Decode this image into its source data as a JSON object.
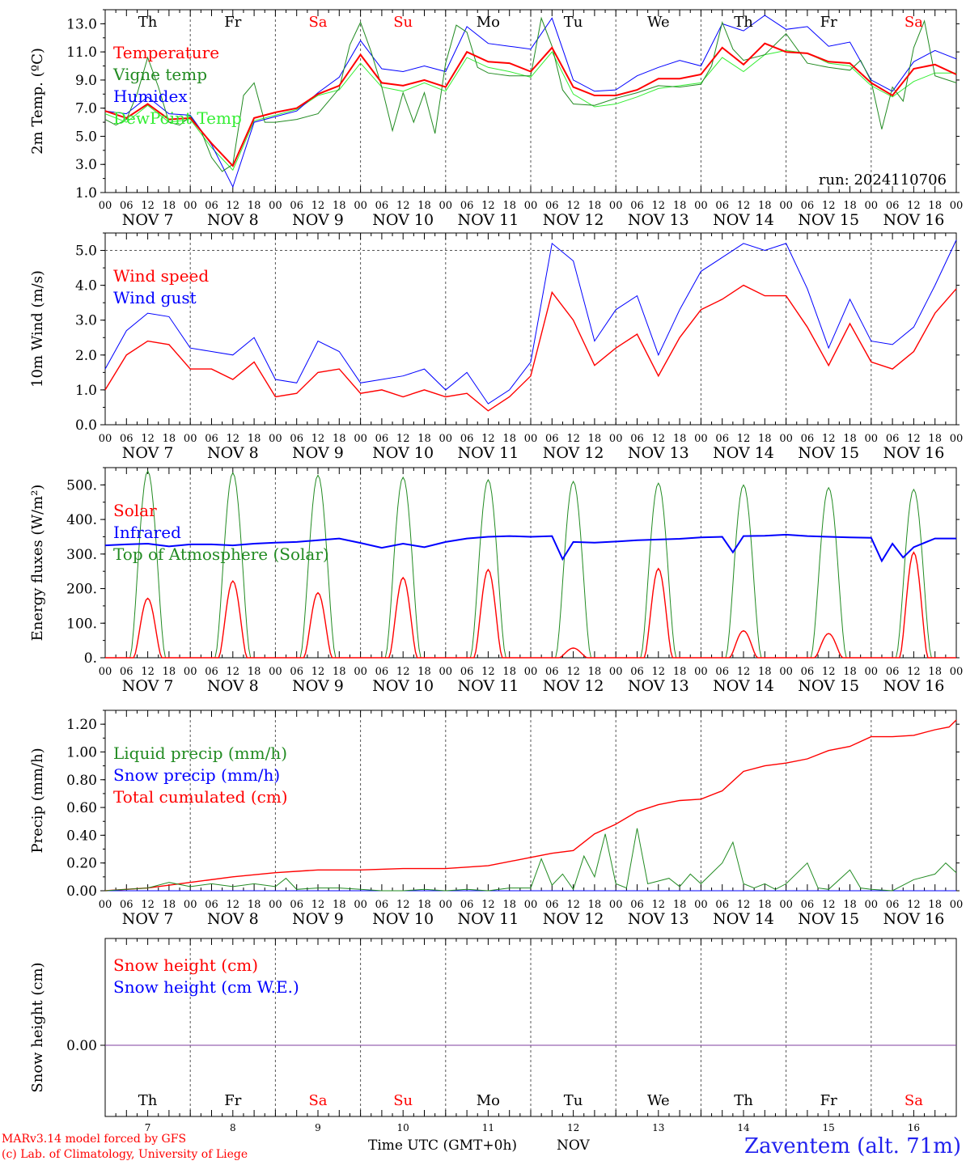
{
  "colors": {
    "red": "#ff0000",
    "green": "#228b22",
    "blue": "#0000ff",
    "lightgreen": "#33ee33",
    "purple": "#7f3f9f",
    "weekend": "#ff0000",
    "weekday": "#000000"
  },
  "time_axis": {
    "hour_ticks": [
      "00",
      "06",
      "12",
      "18"
    ],
    "final_tick": "00",
    "dates": [
      "NOV  7",
      "NOV  8",
      "NOV  9",
      "NOV 10",
      "NOV 11",
      "NOV 12",
      "NOV 13",
      "NOV 14",
      "NOV 15",
      "NOV 16"
    ],
    "weekdays": [
      "Th",
      "Fr",
      "Sa",
      "Su",
      "Mo",
      "Tu",
      "We",
      "Th",
      "Fr",
      "Sa"
    ],
    "weekend_flags": [
      false,
      false,
      true,
      true,
      false,
      false,
      false,
      false,
      false,
      true
    ],
    "day_numbers": [
      "7",
      "8",
      "9",
      "10",
      "11",
      "12",
      "13",
      "14",
      "15",
      "16"
    ]
  },
  "footer": {
    "credit_line1": "MARv3.14 model forced by GFS",
    "credit_line2": "(c) Lab. of Climatology, University of Liege",
    "xlabel": "Time UTC (GMT+0h)",
    "month": "NOV",
    "station": "Zaventem (alt. 71m)"
  },
  "chart_data": [
    {
      "type": "line",
      "ylabel": "2m Temp. (ºC)",
      "ylim": [
        1.0,
        14.0
      ],
      "yticks": [
        "1.0",
        "3.0",
        "5.0",
        "7.0",
        "9.0",
        "11.0",
        "13.0"
      ],
      "ytick_values": [
        1,
        3,
        5,
        7,
        9,
        11,
        13
      ],
      "x_unit": "hours since Nov 7 00 UTC",
      "annotation": "run: 2024110706",
      "legend_placement": "left",
      "series": [
        {
          "name": "Temperature",
          "color": "#ff0000",
          "width": 2,
          "x": [
            0,
            6,
            12,
            18,
            24,
            30,
            36,
            42,
            48,
            54,
            60,
            66,
            72,
            78,
            84,
            90,
            96,
            102,
            108,
            114,
            120,
            126,
            132,
            138,
            144,
            150,
            156,
            162,
            168,
            174,
            180,
            186,
            192,
            198,
            204,
            210,
            216,
            222,
            228,
            234,
            240
          ],
          "values": [
            6.8,
            6.3,
            7.3,
            6.2,
            6.3,
            4.5,
            2.9,
            6.3,
            6.7,
            7.0,
            8.0,
            8.6,
            10.8,
            8.8,
            8.6,
            9.0,
            8.5,
            11.0,
            10.3,
            10.2,
            9.6,
            11.3,
            8.5,
            7.9,
            7.9,
            8.3,
            9.1,
            9.1,
            9.4,
            11.3,
            10.1,
            11.6,
            11.0,
            10.9,
            10.3,
            10.2,
            8.8,
            7.9,
            9.8,
            10.1,
            9.4
          ]
        },
        {
          "name": "Vigne temp",
          "color": "#228b22",
          "width": 1,
          "x": [
            0,
            3,
            6,
            9,
            12,
            15,
            18,
            21,
            24,
            27,
            30,
            33,
            36,
            39,
            42,
            45,
            48,
            54,
            60,
            66,
            69,
            72,
            75,
            78,
            81,
            84,
            87,
            90,
            93,
            96,
            99,
            102,
            105,
            108,
            114,
            120,
            123,
            126,
            129,
            132,
            138,
            144,
            150,
            156,
            162,
            168,
            171,
            174,
            177,
            180,
            186,
            192,
            198,
            204,
            210,
            213,
            216,
            219,
            222,
            225,
            228,
            231,
            234,
            240
          ],
          "values": [
            6.2,
            5.8,
            6.2,
            8.0,
            10.6,
            8.5,
            6.0,
            5.8,
            6.4,
            5.4,
            3.5,
            2.5,
            3.0,
            7.9,
            8.8,
            6.0,
            6.0,
            6.2,
            6.6,
            8.4,
            11.5,
            13.1,
            11.0,
            8.5,
            5.4,
            8.1,
            6.0,
            8.1,
            5.2,
            10.2,
            12.9,
            12.4,
            9.9,
            9.5,
            9.3,
            9.3,
            13.4,
            11.4,
            8.3,
            7.3,
            7.2,
            7.7,
            8.1,
            8.6,
            8.5,
            8.7,
            10.0,
            13.1,
            11.2,
            10.4,
            10.8,
            12.3,
            10.2,
            9.9,
            9.7,
            10.4,
            8.9,
            5.5,
            8.5,
            7.5,
            11.3,
            13.2,
            9.3,
            8.8
          ]
        },
        {
          "name": "Humidex",
          "color": "#0000ff",
          "width": 1,
          "x": [
            0,
            6,
            12,
            18,
            24,
            30,
            36,
            42,
            48,
            54,
            60,
            66,
            72,
            78,
            84,
            90,
            96,
            102,
            108,
            114,
            120,
            126,
            132,
            138,
            144,
            150,
            156,
            162,
            168,
            174,
            180,
            186,
            192,
            198,
            204,
            210,
            216,
            222,
            228,
            234,
            240
          ],
          "values": [
            6.8,
            6.6,
            7.8,
            6.6,
            6.5,
            4.4,
            1.4,
            6.0,
            6.4,
            6.8,
            8.1,
            9.2,
            11.8,
            9.8,
            9.6,
            10.0,
            9.6,
            12.8,
            11.6,
            11.4,
            11.2,
            13.4,
            9.0,
            8.2,
            8.3,
            9.3,
            9.9,
            10.4,
            10.0,
            13.0,
            12.5,
            13.6,
            12.6,
            12.8,
            11.4,
            11.7,
            9.0,
            8.2,
            10.3,
            11.1,
            10.5
          ]
        },
        {
          "name": "DewPoint Temp",
          "color": "#33ee33",
          "width": 1,
          "x": [
            0,
            6,
            12,
            18,
            24,
            30,
            36,
            42,
            48,
            54,
            60,
            66,
            72,
            78,
            84,
            90,
            96,
            102,
            108,
            114,
            120,
            126,
            132,
            138,
            144,
            150,
            156,
            162,
            168,
            174,
            180,
            186,
            192,
            198,
            204,
            210,
            216,
            222,
            228,
            234,
            240
          ],
          "values": [
            6.6,
            6.0,
            7.2,
            6.0,
            6.2,
            4.2,
            2.6,
            6.1,
            6.5,
            6.9,
            7.9,
            8.3,
            10.2,
            8.5,
            8.2,
            8.8,
            8.2,
            10.6,
            9.9,
            9.6,
            9.2,
            11.0,
            8.0,
            7.1,
            7.3,
            7.8,
            8.4,
            8.6,
            8.8,
            10.6,
            9.6,
            10.8,
            11.1,
            10.9,
            10.2,
            10.0,
            8.6,
            7.8,
            8.9,
            9.5,
            9.5
          ]
        }
      ]
    },
    {
      "type": "line",
      "ylabel": "10m Wind (m/s)",
      "ylim": [
        0.0,
        5.5
      ],
      "yticks": [
        "0.0",
        "1.0",
        "2.0",
        "3.0",
        "4.0",
        "5.0"
      ],
      "ytick_values": [
        0,
        1,
        2,
        3,
        4,
        5
      ],
      "hline": 5.0,
      "legend_placement": "left",
      "series": [
        {
          "name": "Wind speed",
          "color": "#ff0000",
          "width": 1.4,
          "x": [
            0,
            6,
            12,
            18,
            24,
            30,
            36,
            42,
            48,
            54,
            60,
            66,
            72,
            78,
            84,
            90,
            96,
            102,
            108,
            114,
            120,
            126,
            132,
            138,
            144,
            150,
            156,
            162,
            168,
            174,
            180,
            186,
            192,
            198,
            204,
            210,
            216,
            222,
            228,
            234,
            240
          ],
          "values": [
            1.0,
            2.0,
            2.4,
            2.3,
            1.6,
            1.6,
            1.3,
            1.8,
            0.8,
            0.9,
            1.5,
            1.6,
            0.9,
            1.0,
            0.8,
            1.0,
            0.8,
            0.9,
            0.4,
            0.8,
            1.4,
            3.8,
            3.0,
            1.7,
            2.2,
            2.6,
            1.4,
            2.5,
            3.3,
            3.6,
            4.0,
            3.7,
            3.7,
            2.8,
            1.7,
            2.9,
            1.8,
            1.6,
            2.1,
            3.2,
            3.9
          ]
        },
        {
          "name": "Wind gust",
          "color": "#0000ff",
          "width": 1,
          "x": [
            0,
            6,
            12,
            18,
            24,
            30,
            36,
            42,
            48,
            54,
            60,
            66,
            72,
            78,
            84,
            90,
            96,
            102,
            108,
            114,
            120,
            126,
            132,
            138,
            144,
            150,
            156,
            162,
            168,
            174,
            180,
            186,
            192,
            198,
            204,
            210,
            216,
            222,
            228,
            234,
            240
          ],
          "values": [
            1.6,
            2.7,
            3.2,
            3.1,
            2.2,
            2.1,
            2.0,
            2.5,
            1.3,
            1.2,
            2.4,
            2.1,
            1.2,
            1.3,
            1.4,
            1.6,
            1.0,
            1.5,
            0.6,
            1.0,
            1.8,
            5.2,
            4.7,
            2.4,
            3.3,
            3.7,
            2.0,
            3.3,
            4.4,
            4.8,
            5.2,
            5.0,
            5.2,
            3.9,
            2.2,
            3.6,
            2.4,
            2.3,
            2.8,
            4.0,
            5.3
          ]
        }
      ]
    },
    {
      "type": "line",
      "ylabel": "Energy fluxes (W/m²)",
      "ylim": [
        0,
        550
      ],
      "yticks": [
        "0.",
        "100.",
        "200.",
        "300.",
        "400.",
        "500."
      ],
      "ytick_values": [
        0,
        100,
        200,
        300,
        400,
        500
      ],
      "legend_placement": "left",
      "series": [
        {
          "name": "Solar",
          "color": "#ff0000",
          "width": 1.4,
          "daily_peaks": [
            172,
            222,
            188,
            232,
            255,
            28,
            258,
            78,
            70,
            305
          ]
        },
        {
          "name": "Infrared",
          "color": "#0000ff",
          "width": 2,
          "x": [
            0,
            6,
            12,
            18,
            24,
            30,
            36,
            42,
            48,
            54,
            60,
            66,
            72,
            78,
            84,
            90,
            96,
            102,
            108,
            114,
            120,
            126,
            129,
            132,
            138,
            144,
            150,
            156,
            162,
            168,
            174,
            177,
            180,
            186,
            192,
            198,
            204,
            210,
            216,
            219,
            222,
            225,
            228,
            234,
            240
          ],
          "values": [
            325,
            328,
            330,
            322,
            328,
            328,
            325,
            330,
            333,
            335,
            340,
            345,
            332,
            318,
            330,
            320,
            335,
            345,
            350,
            352,
            350,
            352,
            285,
            335,
            333,
            336,
            340,
            342,
            344,
            348,
            350,
            305,
            352,
            353,
            356,
            352,
            350,
            348,
            347,
            280,
            330,
            290,
            320,
            345,
            345
          ]
        },
        {
          "name": "Top of Atmosphere (Solar)",
          "color": "#228b22",
          "width": 1,
          "daily_peaks": [
            540,
            535,
            528,
            522,
            515,
            510,
            505,
            500,
            492,
            487
          ]
        }
      ]
    },
    {
      "type": "line",
      "ylabel": "Precip (mm/h)",
      "ylim": [
        0.0,
        1.3
      ],
      "yticks": [
        "0.00",
        "0.20",
        "0.40",
        "0.60",
        "0.80",
        "1.00",
        "1.20"
      ],
      "ytick_values": [
        0,
        0.2,
        0.4,
        0.6,
        0.8,
        1.0,
        1.2
      ],
      "legend_placement": "left",
      "series": [
        {
          "name": "Liquid precip (mm/h)",
          "color": "#228b22",
          "width": 1,
          "x": [
            0,
            6,
            12,
            18,
            24,
            30,
            36,
            42,
            48,
            51,
            54,
            60,
            66,
            72,
            78,
            84,
            90,
            96,
            102,
            108,
            114,
            120,
            123,
            126,
            129,
            132,
            135,
            138,
            141,
            144,
            147,
            150,
            153,
            156,
            159,
            162,
            165,
            168,
            174,
            177,
            180,
            183,
            186,
            189,
            192,
            198,
            201,
            204,
            210,
            213,
            216,
            222,
            228,
            234,
            237,
            240
          ],
          "values": [
            0.0,
            0.01,
            0.02,
            0.06,
            0.03,
            0.05,
            0.03,
            0.05,
            0.03,
            0.09,
            0.01,
            0.02,
            0.02,
            0.01,
            0.0,
            0.0,
            0.01,
            0.0,
            0.01,
            0.0,
            0.02,
            0.02,
            0.23,
            0.04,
            0.12,
            0.01,
            0.25,
            0.1,
            0.41,
            0.05,
            0.02,
            0.45,
            0.05,
            0.07,
            0.09,
            0.03,
            0.12,
            0.05,
            0.2,
            0.35,
            0.05,
            0.02,
            0.05,
            0.01,
            0.05,
            0.2,
            0.02,
            0.01,
            0.15,
            0.02,
            0.01,
            0.0,
            0.08,
            0.12,
            0.2,
            0.13
          ]
        },
        {
          "name": "Snow precip (mm/h)",
          "color": "#0000ff",
          "width": 1,
          "x": [
            0,
            240
          ],
          "values": [
            0,
            0
          ]
        },
        {
          "name": "Total cumulated (cm)",
          "color": "#ff0000",
          "width": 1.4,
          "x": [
            0,
            12,
            24,
            36,
            48,
            60,
            72,
            84,
            96,
            108,
            120,
            126,
            132,
            138,
            144,
            150,
            156,
            162,
            168,
            174,
            180,
            186,
            192,
            198,
            204,
            210,
            216,
            222,
            228,
            234,
            238,
            240
          ],
          "values": [
            0.0,
            0.02,
            0.06,
            0.1,
            0.13,
            0.15,
            0.15,
            0.16,
            0.16,
            0.18,
            0.24,
            0.27,
            0.29,
            0.41,
            0.48,
            0.57,
            0.62,
            0.65,
            0.66,
            0.72,
            0.86,
            0.9,
            0.92,
            0.95,
            1.01,
            1.04,
            1.11,
            1.11,
            1.12,
            1.16,
            1.18,
            1.23
          ]
        }
      ]
    },
    {
      "type": "line",
      "ylabel": "Snow height (cm)",
      "yticks": [
        "0.00"
      ],
      "legend_placement": "left",
      "series": [
        {
          "name": "Snow height (cm)",
          "color": "#ff0000",
          "width": 1,
          "x": [
            0,
            240
          ],
          "values": [
            0,
            0
          ]
        },
        {
          "name": "Snow height (cm W.E.)",
          "color": "#0000ff",
          "width": 1,
          "x": [
            0,
            240
          ],
          "values": [
            0,
            0
          ]
        }
      ]
    }
  ]
}
